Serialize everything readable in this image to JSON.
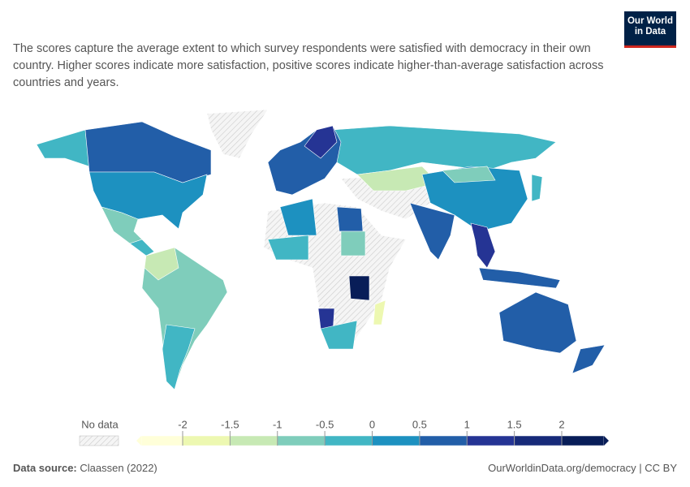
{
  "logo": {
    "line1": "Our World",
    "line2": "in Data"
  },
  "subtitle": "The scores capture the average extent to which survey respondents were satisfied with democracy in their own country. Higher scores indicate more satisfaction, positive scores indicate higher-than-average satisfaction across countries and years.",
  "legend": {
    "no_data_label": "No data",
    "ticks": [
      -2,
      -1.5,
      -1,
      -0.5,
      0,
      0.5,
      1,
      1.5,
      2
    ],
    "colors": [
      "#ffffd9",
      "#edf8b1",
      "#c7e9b4",
      "#7fcdbb",
      "#41b6c4",
      "#1d91c0",
      "#225ea8",
      "#253494",
      "#172a79",
      "#081d58"
    ]
  },
  "footer": {
    "source_label": "Data source:",
    "source": "Claassen (2022)",
    "link": "OurWorldinData.org/democracy | CC BY"
  }
}
